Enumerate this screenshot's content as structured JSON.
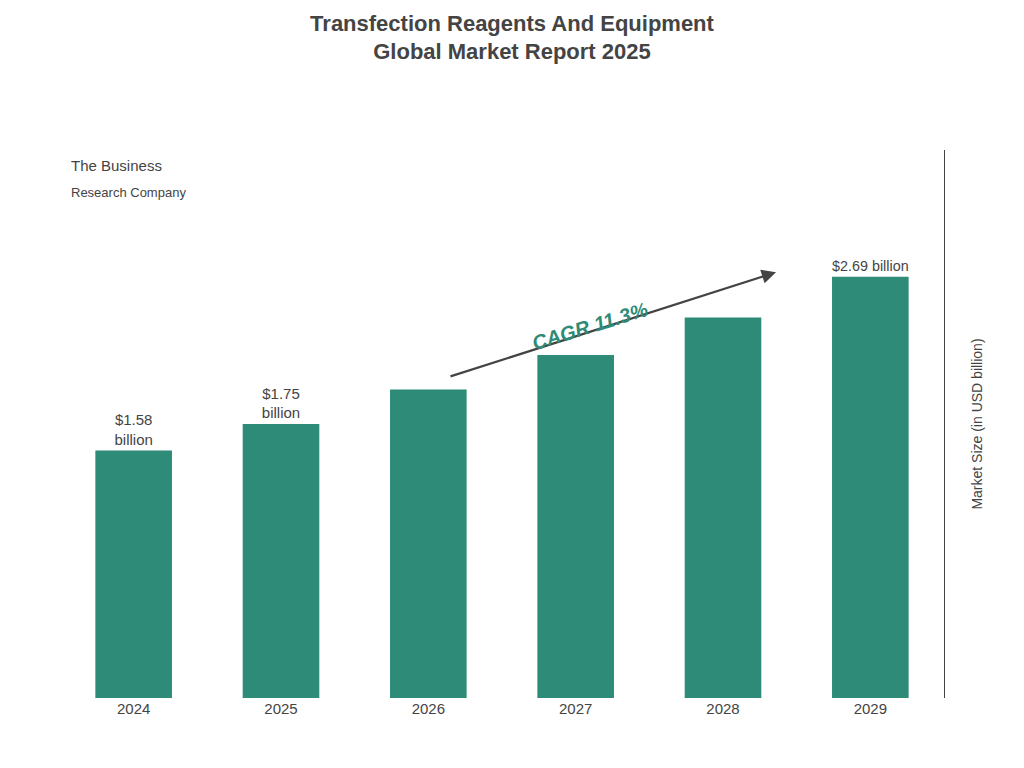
{
  "chart_data": {
    "type": "bar",
    "title": "Transfection Reagents And Equipment\nGlobal Market Report 2025",
    "categories": [
      "2024",
      "2025",
      "2026",
      "2027",
      "2028",
      "2029"
    ],
    "values": [
      1.58,
      1.75,
      1.97,
      2.19,
      2.43,
      2.69
    ],
    "color": "#2d8b77",
    "ylabel": "Market Size (in USD billion)",
    "ylim": [
      0,
      3.5
    ],
    "yticks": [],
    "tick_labels": "x",
    "grid": false,
    "data_labels": true,
    "value_labels": [
      "$1.58\nbillion",
      "$1.75\nbillion",
      null,
      null,
      null,
      "$2.69 billion"
    ],
    "annotations": [
      "CAGR 11.3%",
      "The Business",
      "Research Company"
    ]
  }
}
